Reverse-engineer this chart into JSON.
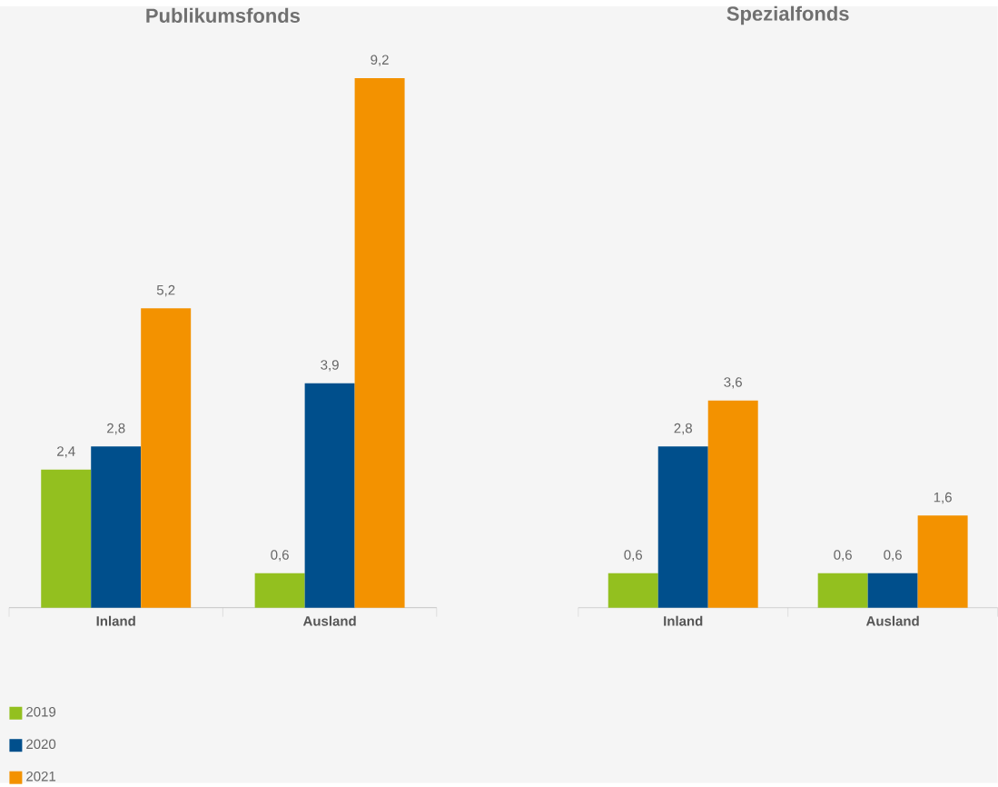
{
  "chart_data": [
    {
      "type": "bar",
      "title": "Publikumsfonds",
      "categories": [
        "Inland",
        "Ausland"
      ],
      "series": [
        {
          "name": "2019",
          "color": "#93c01f",
          "values": [
            2.4,
            0.6
          ],
          "value_labels": [
            "2,4",
            "0,6"
          ]
        },
        {
          "name": "2020",
          "color": "#004f8c",
          "values": [
            2.8,
            3.9
          ],
          "value_labels": [
            "2,8",
            "3,9"
          ]
        },
        {
          "name": "2021",
          "color": "#f39200",
          "values": [
            5.2,
            9.2
          ],
          "value_labels": [
            "5,2",
            "9,2"
          ]
        }
      ],
      "legend": "bottom left"
    },
    {
      "type": "bar",
      "title": "Spezialfonds",
      "categories": [
        "Inland",
        "Ausland"
      ],
      "series": [
        {
          "color": "#93c01f",
          "values": [
            0.6,
            0.6
          ],
          "value_labels": [
            "0,6",
            "0,6"
          ]
        },
        {
          "color": "#004f8c",
          "values": [
            2.8,
            0.6
          ],
          "value_labels": [
            "2,8",
            "0,6"
          ]
        },
        {
          "color": "#f39200",
          "values": [
            3.6,
            1.6
          ],
          "value_labels": [
            "3,6",
            "1,6"
          ]
        }
      ]
    }
  ]
}
